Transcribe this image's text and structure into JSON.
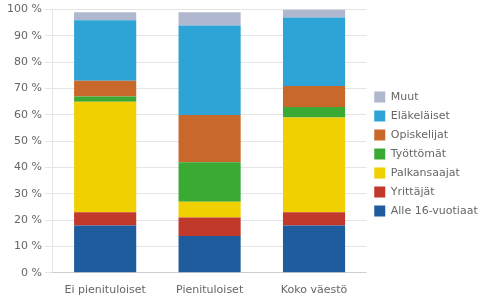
{
  "chart_data": {
    "type": "bar",
    "stacked": true,
    "categories": [
      "Ei pienituloiset",
      "Pienituloiset",
      "Koko väestö"
    ],
    "series": [
      {
        "name": "Alle 16-vuotiaat",
        "color": "#1f5c9e",
        "values": [
          18,
          14,
          18
        ]
      },
      {
        "name": "Yrittäjät",
        "color": "#c0392b",
        "values": [
          5,
          7,
          5
        ]
      },
      {
        "name": "Palkansaajat",
        "color": "#f0d000",
        "values": [
          42,
          6,
          36
        ]
      },
      {
        "name": "Työttömät",
        "color": "#3aaa35",
        "values": [
          2,
          15,
          4
        ]
      },
      {
        "name": "Opiskelijat",
        "color": "#c8682a",
        "values": [
          6,
          18,
          8
        ]
      },
      {
        "name": "Eläkeläiset",
        "color": "#2ea3d5",
        "values": [
          23,
          34,
          26
        ]
      },
      {
        "name": "Muut",
        "color": "#b0b8d0",
        "values": [
          3,
          5,
          3
        ]
      }
    ],
    "ylim": [
      0,
      100
    ],
    "yticks": [
      {
        "value": 0,
        "label": "0 %"
      },
      {
        "value": 10,
        "label": "10 %"
      },
      {
        "value": 20,
        "label": "20 %"
      },
      {
        "value": 30,
        "label": "30 %"
      },
      {
        "value": 40,
        "label": "40 %"
      },
      {
        "value": 50,
        "label": "50 %"
      },
      {
        "value": 60,
        "label": "60 %"
      },
      {
        "value": 70,
        "label": "70 %"
      },
      {
        "value": 80,
        "label": "80 %"
      },
      {
        "value": 90,
        "label": "90 %"
      },
      {
        "value": 100,
        "label": "100 %"
      }
    ],
    "grid": true,
    "legend": "right"
  }
}
